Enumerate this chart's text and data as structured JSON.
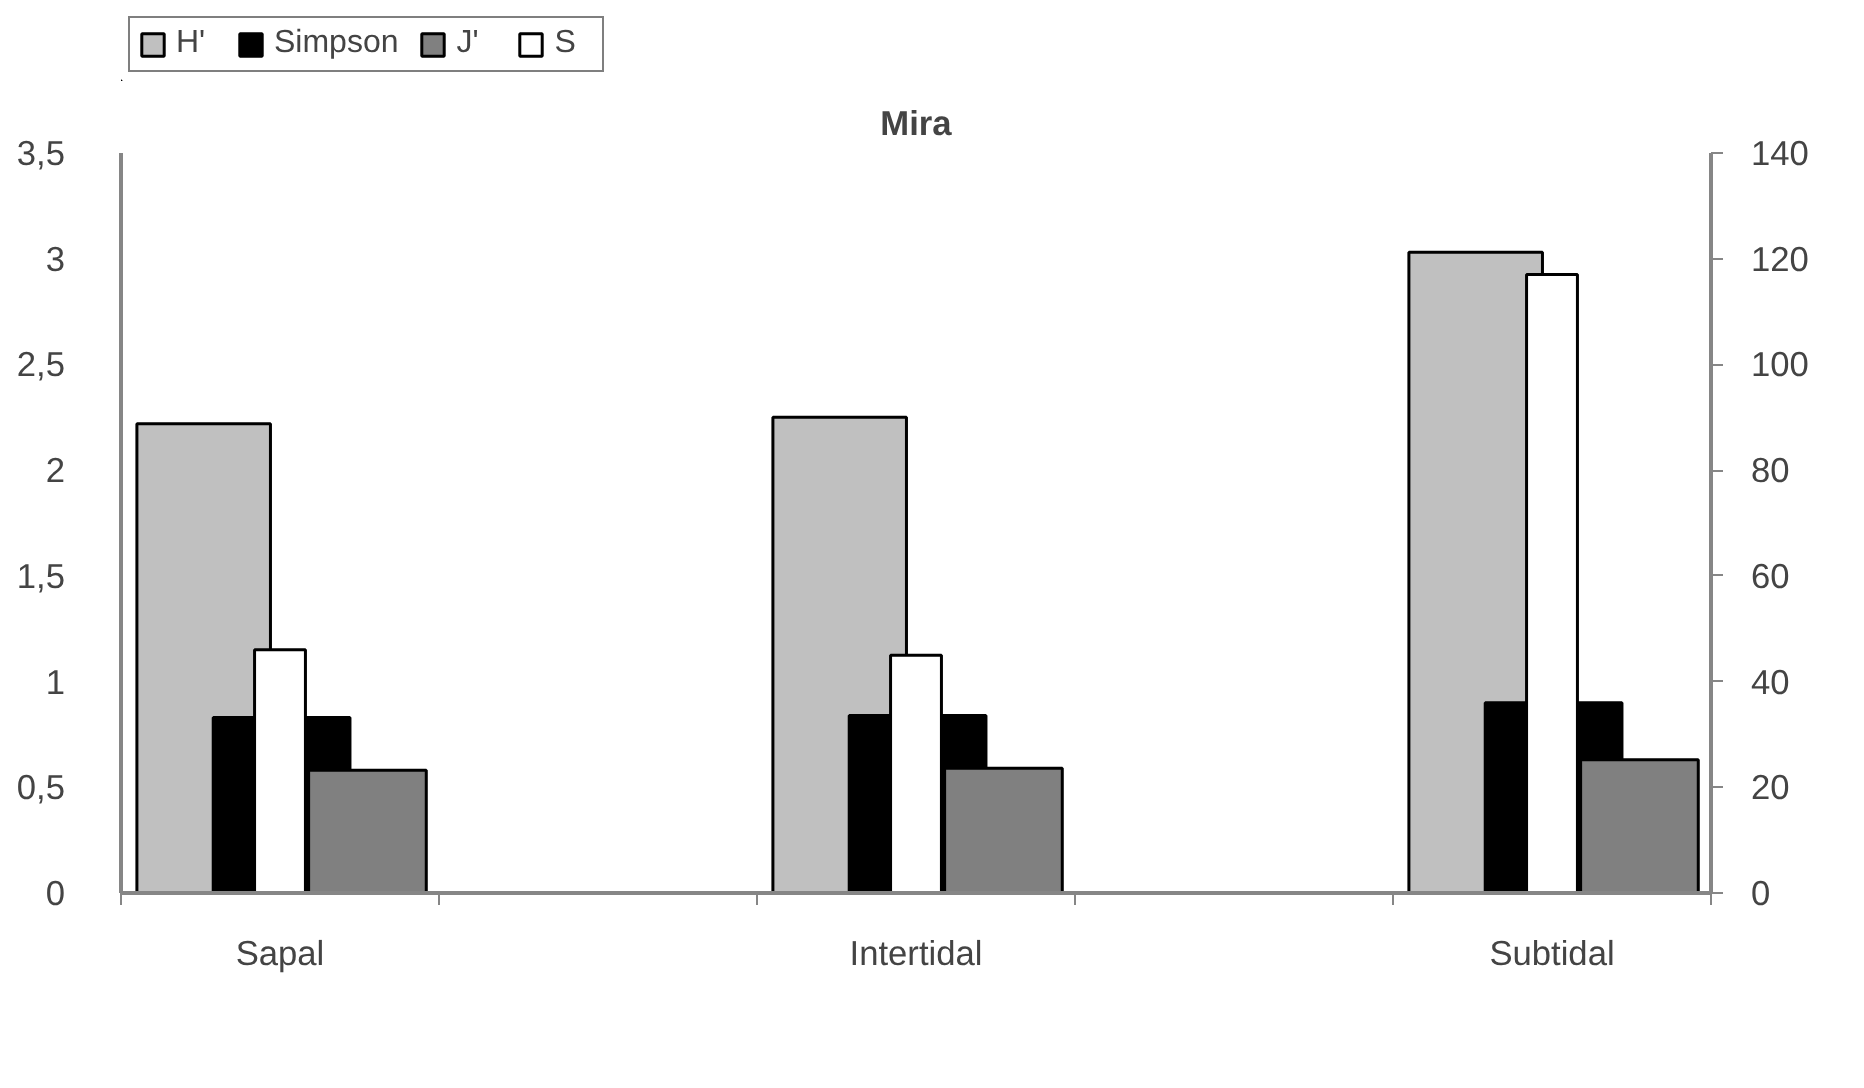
{
  "chart_data": {
    "type": "bar",
    "title": "Mira",
    "categories": [
      "Sapal",
      "Intertidal",
      "Subtidal"
    ],
    "series": [
      {
        "name": "H'",
        "color": "#c0c0c0",
        "values": [
          2.22,
          2.25,
          3.03
        ]
      },
      {
        "name": "Simpson",
        "color": "#000000",
        "values": [
          0.83,
          0.84,
          0.9
        ]
      },
      {
        "name": "J'",
        "color": "#808080",
        "values": [
          0.58,
          0.59,
          0.63
        ]
      },
      {
        "name": "S",
        "color": "#ffffff",
        "values": [
          46,
          45,
          117
        ],
        "axis": "y2"
      }
    ],
    "ylim": [
      0,
      3.5
    ],
    "yticks": [
      0,
      {
        "value": 0.5,
        "label": "0,5"
      },
      1,
      {
        "value": 1.5,
        "label": "1,5"
      },
      2,
      {
        "value": 2.5,
        "label": "2,5"
      },
      3,
      {
        "value": 3.5,
        "label": "3,5"
      }
    ],
    "y2lim": [
      0,
      140
    ],
    "y2ticks": [
      0,
      20,
      40,
      60,
      80,
      100,
      120,
      140
    ],
    "grid": false,
    "legend": "top left"
  }
}
